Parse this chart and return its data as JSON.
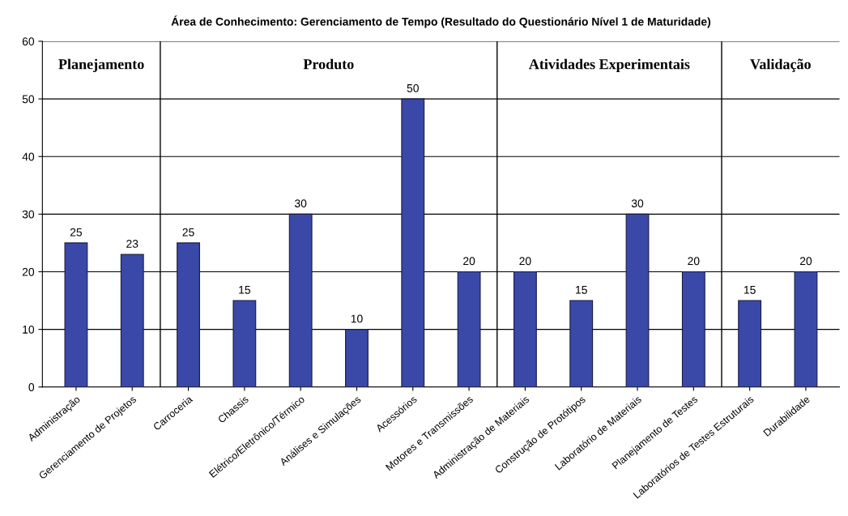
{
  "chart_data": {
    "type": "bar",
    "title": "Área de Conhecimento: Gerenciamento de Tempo (Resultado do Questionário Nível 1 de Maturidade)",
    "categories": [
      "Administração",
      "Gerenciamento de Projetos",
      "Carroceria",
      "Chassis",
      "Elétrico/Eletrônico/Térmico",
      "Análises e Simulações",
      "Acessórios",
      "Motores e Transmissões",
      "Administração de Materiais",
      "Construção de Protótipos",
      "Laboratório de Materiais",
      "Planejamento de Testes",
      "Laboratórios de Testes Estruturais",
      "Durabilidade"
    ],
    "values": [
      25,
      23,
      25,
      15,
      30,
      10,
      50,
      20,
      20,
      15,
      30,
      20,
      15,
      20
    ],
    "color": "#3a48a8",
    "data_labels": true,
    "ylim": [
      0,
      60
    ],
    "yticks": [
      0,
      10,
      20,
      30,
      40,
      50,
      60
    ],
    "grid": "y",
    "annotations": [
      "Planejamento",
      "Produto",
      "Atividades Experimentais",
      "Validação"
    ]
  }
}
